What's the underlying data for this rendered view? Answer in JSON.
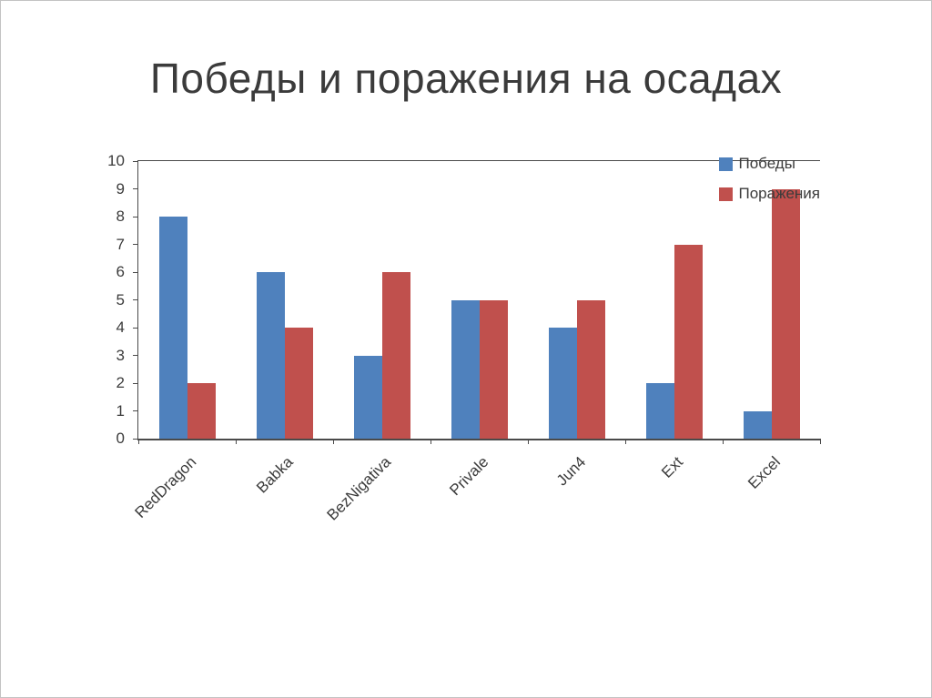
{
  "title": "Победы и поражения на осадах",
  "chart_data": {
    "type": "bar",
    "title": "Победы и поражения на осадах",
    "categories": [
      "RedDragon",
      "Babka",
      "BezNigativa",
      "Privale",
      "Jun4",
      "Ext",
      "Excel"
    ],
    "series": [
      {
        "name": "Победы",
        "color": "#4F81BD",
        "values": [
          8,
          6,
          3,
          5,
          4,
          2,
          1
        ]
      },
      {
        "name": "Поражения",
        "color": "#C0504D",
        "values": [
          2,
          4,
          6,
          5,
          5,
          7,
          9
        ]
      }
    ],
    "xlabel": "",
    "ylabel": "",
    "ylim": [
      0,
      10
    ],
    "ytick_step": 1,
    "grid": false,
    "legend_position": "top-right"
  }
}
